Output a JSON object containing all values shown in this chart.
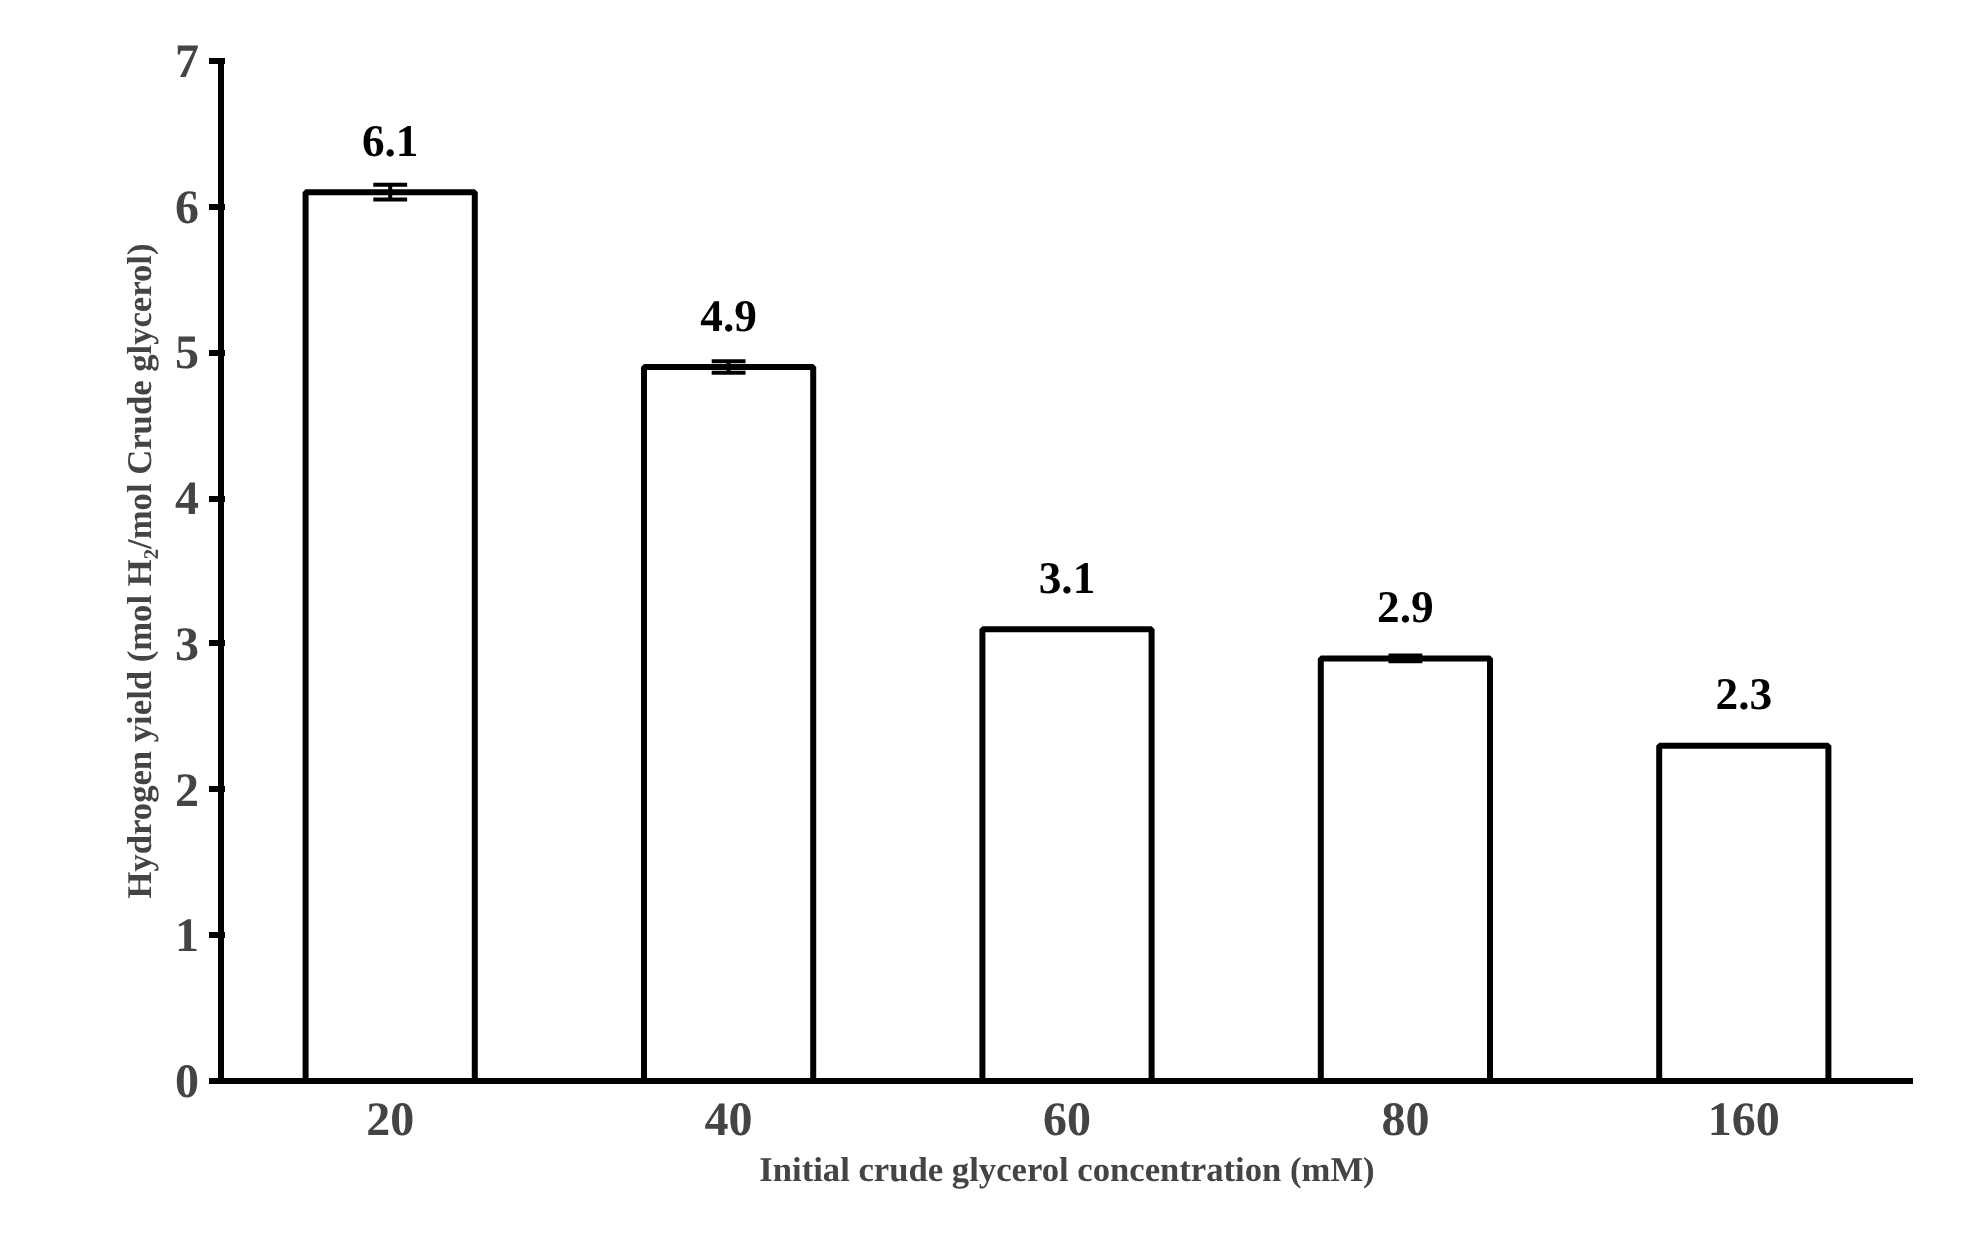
{
  "chart_data": {
    "type": "bar",
    "xlabel": "Initial crude glycerol concentration (mM)",
    "ylabel": "Hydrogen yield (mol H₂/mol Crude glycerol)",
    "categories": [
      "20",
      "40",
      "60",
      "80",
      "160"
    ],
    "values": [
      6.1,
      4.9,
      3.1,
      2.9,
      2.3
    ],
    "errors": [
      0.05,
      0.04,
      null,
      0.02,
      null
    ],
    "color": "#ffffff",
    "data_labels": true,
    "ylim": [
      0,
      7
    ],
    "yticks": [
      0,
      1,
      2,
      3,
      4,
      5,
      6,
      7
    ]
  }
}
